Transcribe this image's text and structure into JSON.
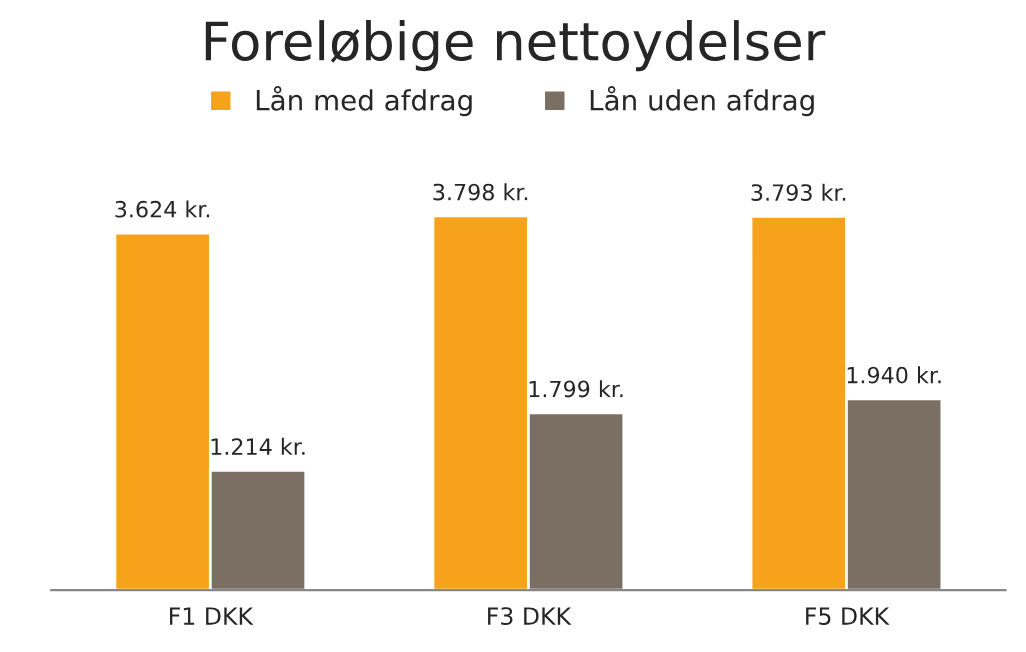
{
  "chart_data": {
    "type": "bar",
    "title": "Foreløbige nettoydelser",
    "categories": [
      "F1 DKK",
      "F3 DKK",
      "F5 DKK"
    ],
    "series": [
      {
        "name": "Lån med afdrag",
        "color": "#f7a21b",
        "values": [
          3624,
          3798,
          3793
        ],
        "value_labels": [
          "3.624 kr.",
          "3.798 kr.",
          "3.793 kr."
        ]
      },
      {
        "name": "Lån uden afdrag",
        "color": "#7b6f63",
        "values": [
          1214,
          1799,
          1940
        ],
        "value_labels": [
          "1.214 kr.",
          "1.799 kr.",
          "1.940 kr."
        ]
      }
    ],
    "legend": "top",
    "grid": false
  }
}
